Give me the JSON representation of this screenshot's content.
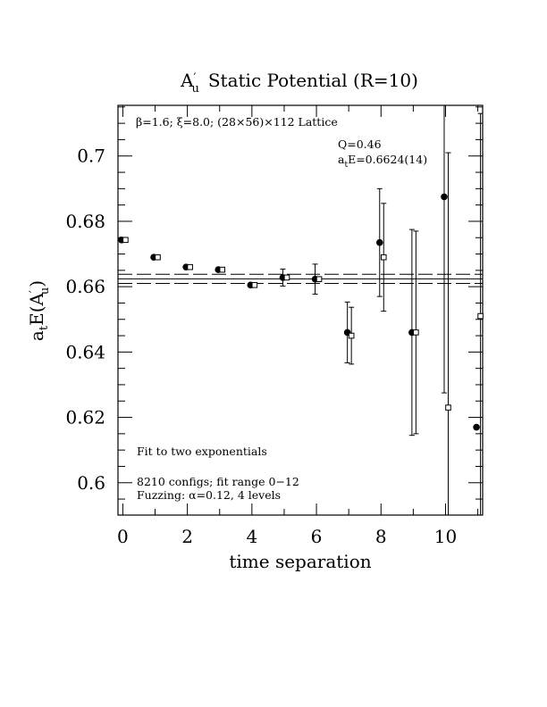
{
  "chart_data": {
    "type": "scatter",
    "title_main": "A",
    "title_prime": "′",
    "title_sub": "u",
    "title_rest": "Static Potential (R=10)",
    "xlabel": "time separation",
    "ylabel_main": "a",
    "ylabel_sub": "t",
    "ylabel_mid": "E(A",
    "ylabel_prime": "′",
    "ylabel_sub2": "u",
    "ylabel_end": ")",
    "xlim": [
      -0.15,
      11.15
    ],
    "ylim": [
      0.5901,
      0.7155
    ],
    "xticks": [
      0,
      2,
      4,
      6,
      8,
      10
    ],
    "xtick_labels": [
      "0",
      "2",
      "4",
      "6",
      "8",
      "10"
    ],
    "yticks": [
      0.6,
      0.62,
      0.64,
      0.66,
      0.68,
      0.7
    ],
    "ytick_labels": [
      "0.6",
      "0.62",
      "0.64",
      "0.66",
      "0.68",
      "0.7"
    ],
    "x_minor_step": 1,
    "y_minor_step": 0.005,
    "annotations": {
      "lattice": "β=1.6; ξ=8.0; (28×56)×112 Lattice",
      "q_value": "Q=0.46",
      "energy_main": "a",
      "energy_sub": "t",
      "energy_rest": "E=0.6624(14)",
      "fit_label": "Fit to two exponentials",
      "configs": "8210 configs; fit range 0−12",
      "fuzzing": "Fuzzing: α=0.12, 4 levels"
    },
    "fit": {
      "center": 0.6624,
      "error": 0.0014,
      "x_start": -0.15,
      "x_end": 11.15
    },
    "series": [
      {
        "marker": "filled-circle",
        "points": [
          {
            "x": 0,
            "y": 0.6743,
            "err": 0.0
          },
          {
            "x": 1,
            "y": 0.669,
            "err": 0.0
          },
          {
            "x": 2,
            "y": 0.666,
            "err": 0.0
          },
          {
            "x": 3,
            "y": 0.6652,
            "err": 0.0
          },
          {
            "x": 4,
            "y": 0.6605,
            "err": 0.0
          },
          {
            "x": 5,
            "y": 0.6628,
            "err": 0.0026
          },
          {
            "x": 6,
            "y": 0.6623,
            "err": 0.0046
          },
          {
            "x": 7,
            "y": 0.646,
            "err": 0.0093
          },
          {
            "x": 8,
            "y": 0.6735,
            "err": 0.0165
          },
          {
            "x": 9,
            "y": 0.646,
            "err": 0.0315
          },
          {
            "x": 10,
            "y": 0.6875,
            "err": 0.06
          },
          {
            "x": 11,
            "y": 0.617,
            "err": 0.0
          }
        ]
      },
      {
        "marker": "open-square",
        "points": [
          {
            "x": 0,
            "y": 0.6743,
            "err": 0.0
          },
          {
            "x": 1,
            "y": 0.669,
            "err": 0.0
          },
          {
            "x": 2,
            "y": 0.666,
            "err": 0.0
          },
          {
            "x": 3,
            "y": 0.6652,
            "err": 0.0
          },
          {
            "x": 4,
            "y": 0.6605,
            "err": 0.0
          },
          {
            "x": 5,
            "y": 0.6628,
            "err": 0.0
          },
          {
            "x": 6,
            "y": 0.6623,
            "err": 0.0
          },
          {
            "x": 7,
            "y": 0.645,
            "err": 0.0087
          },
          {
            "x": 8,
            "y": 0.669,
            "err": 0.0165
          },
          {
            "x": 9,
            "y": 0.646,
            "err": 0.031
          },
          {
            "x": 10,
            "y": 0.623,
            "err": 0.078
          },
          {
            "x": 11,
            "y": 0.651,
            "err": 0.062
          }
        ]
      }
    ]
  }
}
